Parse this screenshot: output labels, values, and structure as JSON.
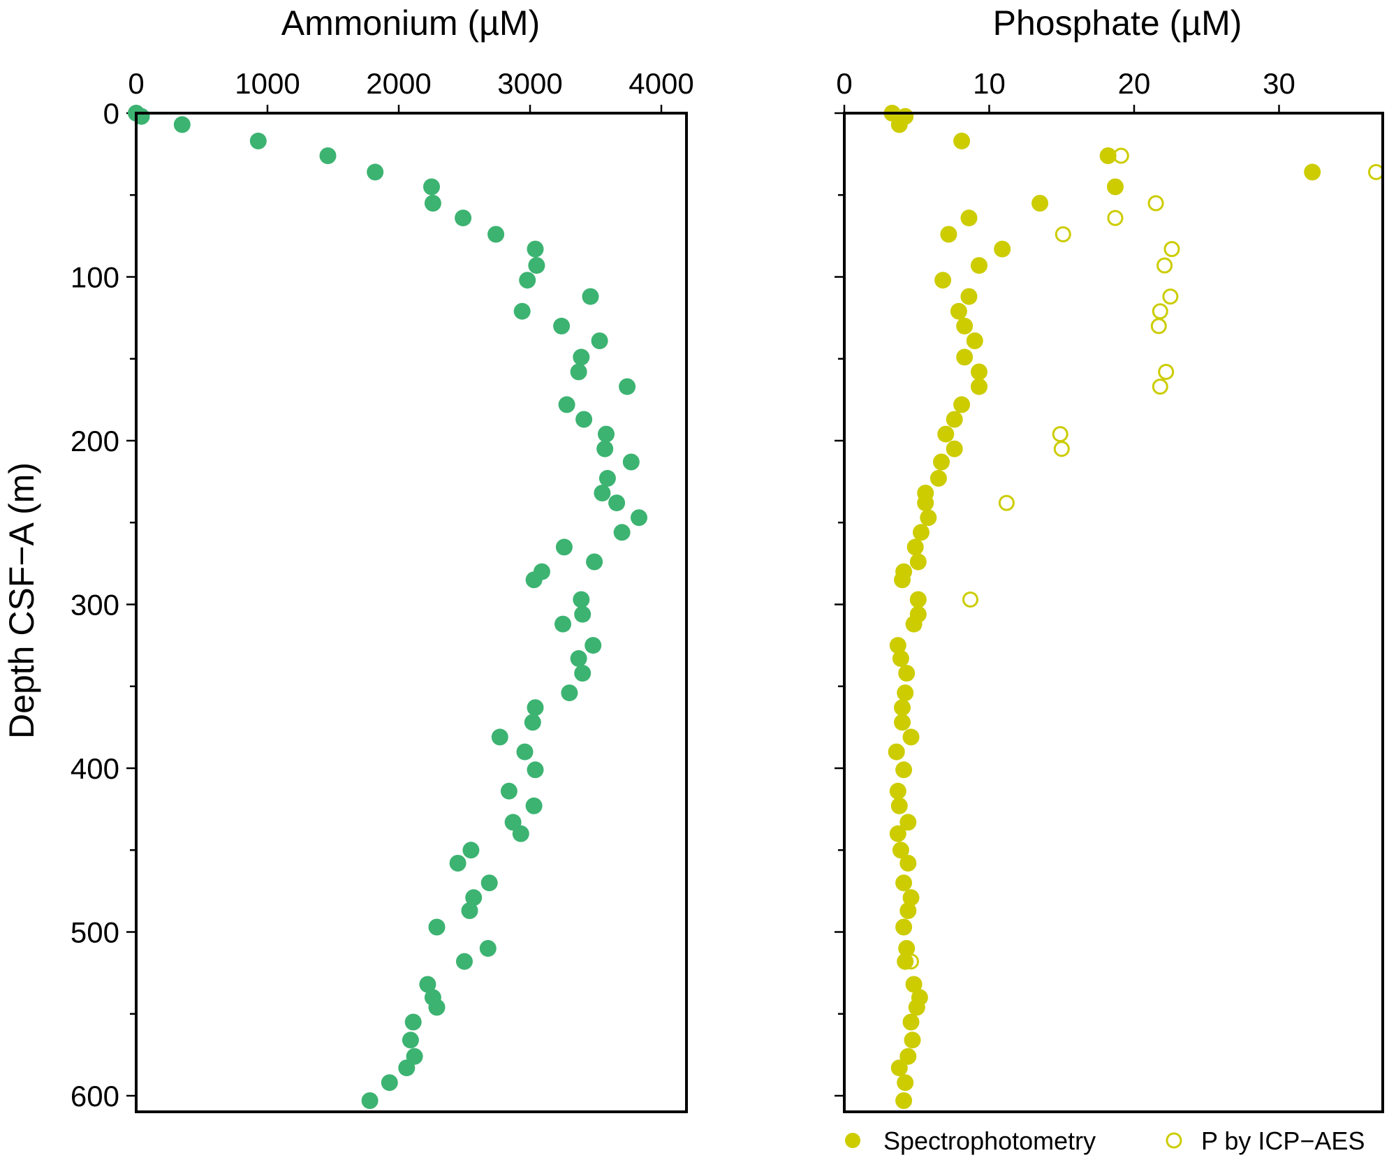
{
  "chart_data": [
    {
      "type": "scatter",
      "title": "Ammonium (µM)",
      "ylabel": "Depth CSF−A (m)",
      "xlim": [
        0,
        4200
      ],
      "ylim": [
        610,
        0
      ],
      "x_ticks": [
        "0",
        "1000",
        "2000",
        "3000",
        "4000"
      ],
      "y_ticks": [
        "0",
        "100",
        "200",
        "300",
        "400",
        "500",
        "600"
      ],
      "colors": {
        "points": "#3cb371"
      },
      "series": [
        {
          "marker": "filled-circle",
          "points": [
            [
              0,
              0
            ],
            [
              40,
              2
            ],
            [
              350,
              7
            ],
            [
              930,
              17
            ],
            [
              1460,
              26
            ],
            [
              1820,
              36
            ],
            [
              2250,
              45
            ],
            [
              2260,
              55
            ],
            [
              2490,
              64
            ],
            [
              2740,
              74
            ],
            [
              3040,
              83
            ],
            [
              3050,
              93
            ],
            [
              2980,
              102
            ],
            [
              3460,
              112
            ],
            [
              2940,
              121
            ],
            [
              3240,
              130
            ],
            [
              3530,
              139
            ],
            [
              3390,
              149
            ],
            [
              3370,
              158
            ],
            [
              3740,
              167
            ],
            [
              3280,
              178
            ],
            [
              3410,
              187
            ],
            [
              3580,
              196
            ],
            [
              3570,
              205
            ],
            [
              3770,
              213
            ],
            [
              3590,
              223
            ],
            [
              3550,
              232
            ],
            [
              3660,
              238
            ],
            [
              3830,
              247
            ],
            [
              3700,
              256
            ],
            [
              3260,
              265
            ],
            [
              3490,
              274
            ],
            [
              3090,
              280
            ],
            [
              3030,
              285
            ],
            [
              3390,
              297
            ],
            [
              3400,
              306
            ],
            [
              3250,
              312
            ],
            [
              3480,
              325
            ],
            [
              3370,
              333
            ],
            [
              3400,
              342
            ],
            [
              3300,
              354
            ],
            [
              3040,
              363
            ],
            [
              3020,
              372
            ],
            [
              2770,
              381
            ],
            [
              2960,
              390
            ],
            [
              3040,
              401
            ],
            [
              2840,
              414
            ],
            [
              3030,
              423
            ],
            [
              2870,
              433
            ],
            [
              2930,
              440
            ],
            [
              2550,
              450
            ],
            [
              2450,
              458
            ],
            [
              2690,
              470
            ],
            [
              2570,
              479
            ],
            [
              2540,
              487
            ],
            [
              2290,
              497
            ],
            [
              2680,
              510
            ],
            [
              2500,
              518
            ],
            [
              2220,
              532
            ],
            [
              2260,
              540
            ],
            [
              2290,
              546
            ],
            [
              2110,
              555
            ],
            [
              2090,
              566
            ],
            [
              2120,
              576
            ],
            [
              2060,
              583
            ],
            [
              1930,
              592
            ],
            [
              1780,
              603
            ]
          ]
        }
      ]
    },
    {
      "type": "scatter",
      "title": "Phosphate (µM)",
      "xlim": [
        0,
        37
      ],
      "ylim": [
        610,
        0
      ],
      "x_ticks": [
        "0",
        "10",
        "20",
        "30"
      ],
      "colors": {
        "points": "#cccc00"
      },
      "legend": {
        "position": "bottom",
        "labels": [
          "Spectrophotometry",
          "P by ICP−AES"
        ]
      },
      "series": [
        {
          "name": "Spectrophotometry",
          "marker": "filled-circle",
          "points": [
            [
              3.3,
              0
            ],
            [
              4.2,
              2
            ],
            [
              3.8,
              7
            ],
            [
              8.1,
              17
            ],
            [
              18.2,
              26
            ],
            [
              32.3,
              36
            ],
            [
              18.7,
              45
            ],
            [
              13.5,
              55
            ],
            [
              8.6,
              64
            ],
            [
              7.2,
              74
            ],
            [
              10.9,
              83
            ],
            [
              9.3,
              93
            ],
            [
              6.8,
              102
            ],
            [
              8.6,
              112
            ],
            [
              7.9,
              121
            ],
            [
              8.3,
              130
            ],
            [
              9.0,
              139
            ],
            [
              8.3,
              149
            ],
            [
              9.3,
              158
            ],
            [
              9.3,
              167
            ],
            [
              8.1,
              178
            ],
            [
              7.6,
              187
            ],
            [
              7.0,
              196
            ],
            [
              7.6,
              205
            ],
            [
              6.7,
              213
            ],
            [
              6.5,
              223
            ],
            [
              5.6,
              232
            ],
            [
              5.6,
              238
            ],
            [
              5.8,
              247
            ],
            [
              5.3,
              256
            ],
            [
              4.9,
              265
            ],
            [
              5.1,
              274
            ],
            [
              4.1,
              280
            ],
            [
              4.0,
              285
            ],
            [
              5.1,
              297
            ],
            [
              5.1,
              306
            ],
            [
              4.8,
              312
            ],
            [
              3.7,
              325
            ],
            [
              3.9,
              333
            ],
            [
              4.3,
              342
            ],
            [
              4.2,
              354
            ],
            [
              4.0,
              363
            ],
            [
              4.0,
              372
            ],
            [
              4.6,
              381
            ],
            [
              3.6,
              390
            ],
            [
              4.1,
              401
            ],
            [
              3.7,
              414
            ],
            [
              3.8,
              423
            ],
            [
              4.4,
              433
            ],
            [
              3.7,
              440
            ],
            [
              3.9,
              450
            ],
            [
              4.4,
              458
            ],
            [
              4.1,
              470
            ],
            [
              4.6,
              479
            ],
            [
              4.4,
              487
            ],
            [
              4.1,
              497
            ],
            [
              4.3,
              510
            ],
            [
              4.2,
              518
            ],
            [
              4.8,
              532
            ],
            [
              5.2,
              540
            ],
            [
              5.0,
              546
            ],
            [
              4.6,
              555
            ],
            [
              4.7,
              566
            ],
            [
              4.4,
              576
            ],
            [
              3.8,
              583
            ],
            [
              4.2,
              592
            ],
            [
              4.1,
              603
            ]
          ]
        },
        {
          "name": "P by ICP−AES",
          "marker": "open-circle",
          "points": [
            [
              19.1,
              26
            ],
            [
              36.7,
              36
            ],
            [
              21.5,
              55
            ],
            [
              18.7,
              64
            ],
            [
              15.1,
              74
            ],
            [
              22.6,
              83
            ],
            [
              22.1,
              93
            ],
            [
              22.5,
              112
            ],
            [
              21.8,
              121
            ],
            [
              21.7,
              130
            ],
            [
              22.2,
              158
            ],
            [
              21.8,
              167
            ],
            [
              14.9,
              196
            ],
            [
              15.0,
              205
            ],
            [
              11.2,
              238
            ],
            [
              8.7,
              297
            ],
            [
              4.6,
              518
            ]
          ]
        }
      ]
    }
  ]
}
